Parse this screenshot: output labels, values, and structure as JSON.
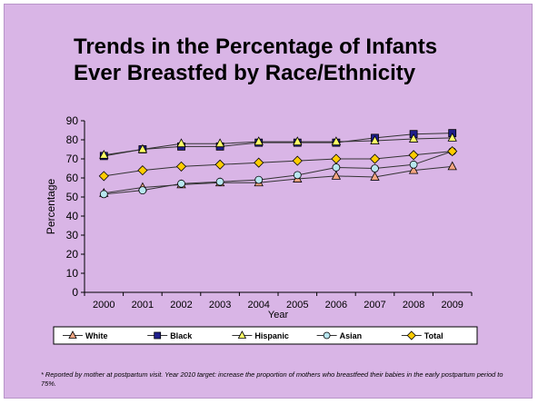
{
  "slide": {
    "title_line1": "Trends in the Percentage of Infants",
    "title_line2": "Ever Breastfed by Race/Ethnicity",
    "footnote": "* Reported by mother at postpartum visit. Year 2010 target: increase the proportion of mothers who breastfeed their babies in the early postpartum period to 75%."
  },
  "chart_data": {
    "type": "line",
    "title": "",
    "xlabel": "Year",
    "ylabel": "Percentage",
    "ylim": [
      0,
      90
    ],
    "yticks": [
      0,
      10,
      20,
      30,
      40,
      50,
      60,
      70,
      80,
      90
    ],
    "grid": false,
    "legend_placement": "bottom",
    "categories": [
      "2000",
      "2001",
      "2002",
      "2003",
      "2004",
      "2005",
      "2006",
      "2007",
      "2008",
      "2009"
    ],
    "series": [
      {
        "name": "White",
        "marker": "triangle",
        "marker_fill": "#f4a582",
        "line_color": "#333333",
        "values": [
          52,
          55,
          56.5,
          57.5,
          57.5,
          59.5,
          61,
          60.5,
          64,
          66
        ]
      },
      {
        "name": "Black",
        "marker": "square",
        "marker_fill": "#1f1f8c",
        "line_color": "#333333",
        "values": [
          71.5,
          75,
          76.5,
          76.5,
          78.5,
          78.5,
          78.5,
          81,
          83,
          83.5
        ]
      },
      {
        "name": "Hispanic",
        "marker": "triangle",
        "marker_fill": "#ffff66",
        "line_color": "#333333",
        "values": [
          72,
          75,
          78,
          78,
          79,
          79,
          79,
          79.5,
          80.5,
          81
        ]
      },
      {
        "name": "Asian",
        "marker": "circle",
        "marker_fill": "#b8e6f0",
        "line_color": "#333333",
        "values": [
          51.5,
          53.5,
          57,
          58,
          59,
          61.5,
          65.5,
          65,
          67,
          74
        ]
      },
      {
        "name": "Total",
        "marker": "diamond",
        "marker_fill": "#ffcc00",
        "line_color": "#333333",
        "values": [
          61,
          64,
          66,
          67,
          68,
          69,
          70,
          70,
          72,
          74
        ]
      }
    ]
  }
}
